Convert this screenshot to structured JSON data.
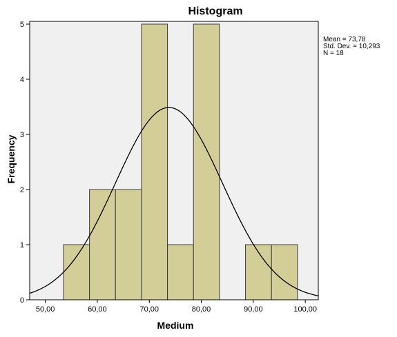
{
  "chart_data": {
    "type": "bar",
    "subtype": "histogram",
    "title": "Histogram",
    "xlabel": "Medium",
    "ylabel": "Frequency",
    "bin_width": 5,
    "bins": [
      {
        "start": 53.5,
        "end": 58.5,
        "count": 1
      },
      {
        "start": 58.5,
        "end": 63.5,
        "count": 2
      },
      {
        "start": 63.5,
        "end": 68.5,
        "count": 2
      },
      {
        "start": 68.5,
        "end": 73.5,
        "count": 5
      },
      {
        "start": 73.5,
        "end": 78.5,
        "count": 1
      },
      {
        "start": 78.5,
        "end": 83.5,
        "count": 5
      },
      {
        "start": 83.5,
        "end": 88.5,
        "count": 0
      },
      {
        "start": 88.5,
        "end": 93.5,
        "count": 1
      },
      {
        "start": 93.5,
        "end": 98.5,
        "count": 1
      }
    ],
    "xlim": [
      47,
      102.5
    ],
    "ylim": [
      0,
      5.05
    ],
    "x_ticks": [
      {
        "value": 50,
        "label": "50,00"
      },
      {
        "value": 60,
        "label": "60,00"
      },
      {
        "value": 70,
        "label": "70,00"
      },
      {
        "value": 80,
        "label": "80,00"
      },
      {
        "value": 90,
        "label": "90,00"
      },
      {
        "value": 100,
        "label": "100,00"
      }
    ],
    "y_ticks": [
      {
        "value": 0,
        "label": "0"
      },
      {
        "value": 1,
        "label": "1"
      },
      {
        "value": 2,
        "label": "2"
      },
      {
        "value": 3,
        "label": "3"
      },
      {
        "value": 4,
        "label": "4"
      },
      {
        "value": 5,
        "label": "5"
      }
    ],
    "normal_curve": {
      "mean": 73.78,
      "sd": 10.293,
      "n": 18
    },
    "stats": [
      "Mean = 73,78",
      "Std. Dev. = 10,293",
      "N = 18"
    ],
    "colors": {
      "plot_background": "#f0f0f0",
      "bar_fill": "#d3ce97",
      "bar_stroke": "#3c3c3c",
      "curve": "#000000"
    },
    "grid": false,
    "legend": "none"
  }
}
